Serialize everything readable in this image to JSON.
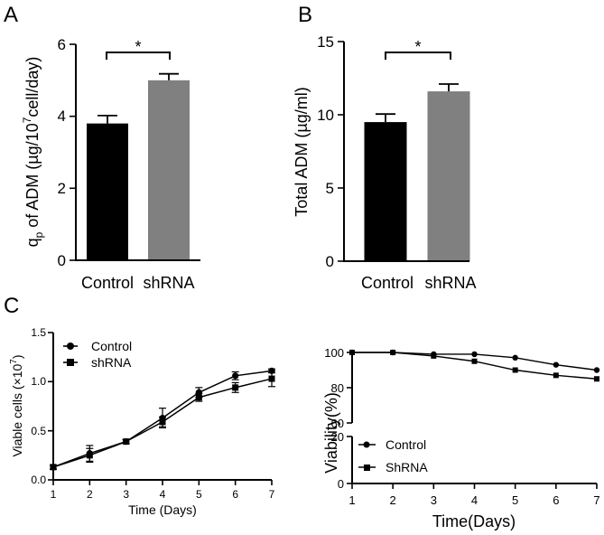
{
  "panels": {
    "a": "A",
    "b": "B",
    "c": "C"
  },
  "chart_data": [
    {
      "id": "A",
      "type": "bar",
      "categories": [
        "Control",
        "shRNA"
      ],
      "values": [
        3.8,
        5.0
      ],
      "errors": [
        0.22,
        0.18
      ],
      "colors": [
        "#000000",
        "#808080"
      ],
      "ylabel_main": "q",
      "ylabel_sub": "p",
      "ylabel_mid": " of ADM (µg/10",
      "ylabel_sup": "7",
      "ylabel_tail": "cell/day)",
      "ylim": [
        0,
        6
      ],
      "yticks": [
        "0",
        "2",
        "4",
        "6"
      ],
      "significance": "*"
    },
    {
      "id": "B",
      "type": "bar",
      "categories": [
        "Control",
        "shRNA"
      ],
      "values": [
        9.5,
        11.6
      ],
      "errors": [
        0.55,
        0.5
      ],
      "colors": [
        "#000000",
        "#808080"
      ],
      "ylabel": "Total ADM (µg/ml)",
      "ylim": [
        0,
        15
      ],
      "yticks": [
        "0",
        "5",
        "10",
        "15"
      ],
      "significance": "*"
    },
    {
      "id": "C1",
      "type": "line",
      "x": [
        1,
        2,
        3,
        4,
        5,
        6,
        7
      ],
      "xticks": [
        "1",
        "2",
        "3",
        "4",
        "5",
        "6",
        "7"
      ],
      "xlabel": "Time (Days)",
      "ylabel_main": "Viable cells (×10",
      "ylabel_sup": "7",
      "ylabel_tail": ")",
      "ylim": [
        0,
        1.5
      ],
      "yticks": [
        "0.0",
        "0.5",
        "1.0",
        "1.5"
      ],
      "series": [
        {
          "name": "Control",
          "marker": "circle",
          "values": [
            0.13,
            0.27,
            0.39,
            0.63,
            0.89,
            1.06,
            1.11
          ],
          "errors": [
            0.02,
            0.08,
            0.02,
            0.1,
            0.05,
            0.04,
            0.02
          ]
        },
        {
          "name": "shRNA",
          "marker": "square",
          "values": [
            0.13,
            0.25,
            0.39,
            0.59,
            0.84,
            0.94,
            1.03
          ],
          "errors": [
            0.02,
            0.07,
            0.02,
            0.05,
            0.04,
            0.05,
            0.08
          ]
        }
      ]
    },
    {
      "id": "C2",
      "type": "line",
      "x": [
        1,
        2,
        3,
        4,
        5,
        6,
        7
      ],
      "xticks": [
        "1",
        "2",
        "3",
        "4",
        "5",
        "6",
        "7"
      ],
      "xlabel": "Time(Days)",
      "ylabel": "Viability(%)",
      "yticks_upper": [
        "60",
        "80",
        "100"
      ],
      "yticks_lower": [
        "0",
        "20"
      ],
      "ylim": [
        0,
        100
      ],
      "series": [
        {
          "name": "Control",
          "marker": "circle",
          "values": [
            100,
            100,
            99,
            99,
            97,
            93,
            90
          ]
        },
        {
          "name": "ShRNA",
          "marker": "square",
          "values": [
            100,
            100,
            98,
            95,
            90,
            87,
            85
          ]
        }
      ]
    }
  ]
}
